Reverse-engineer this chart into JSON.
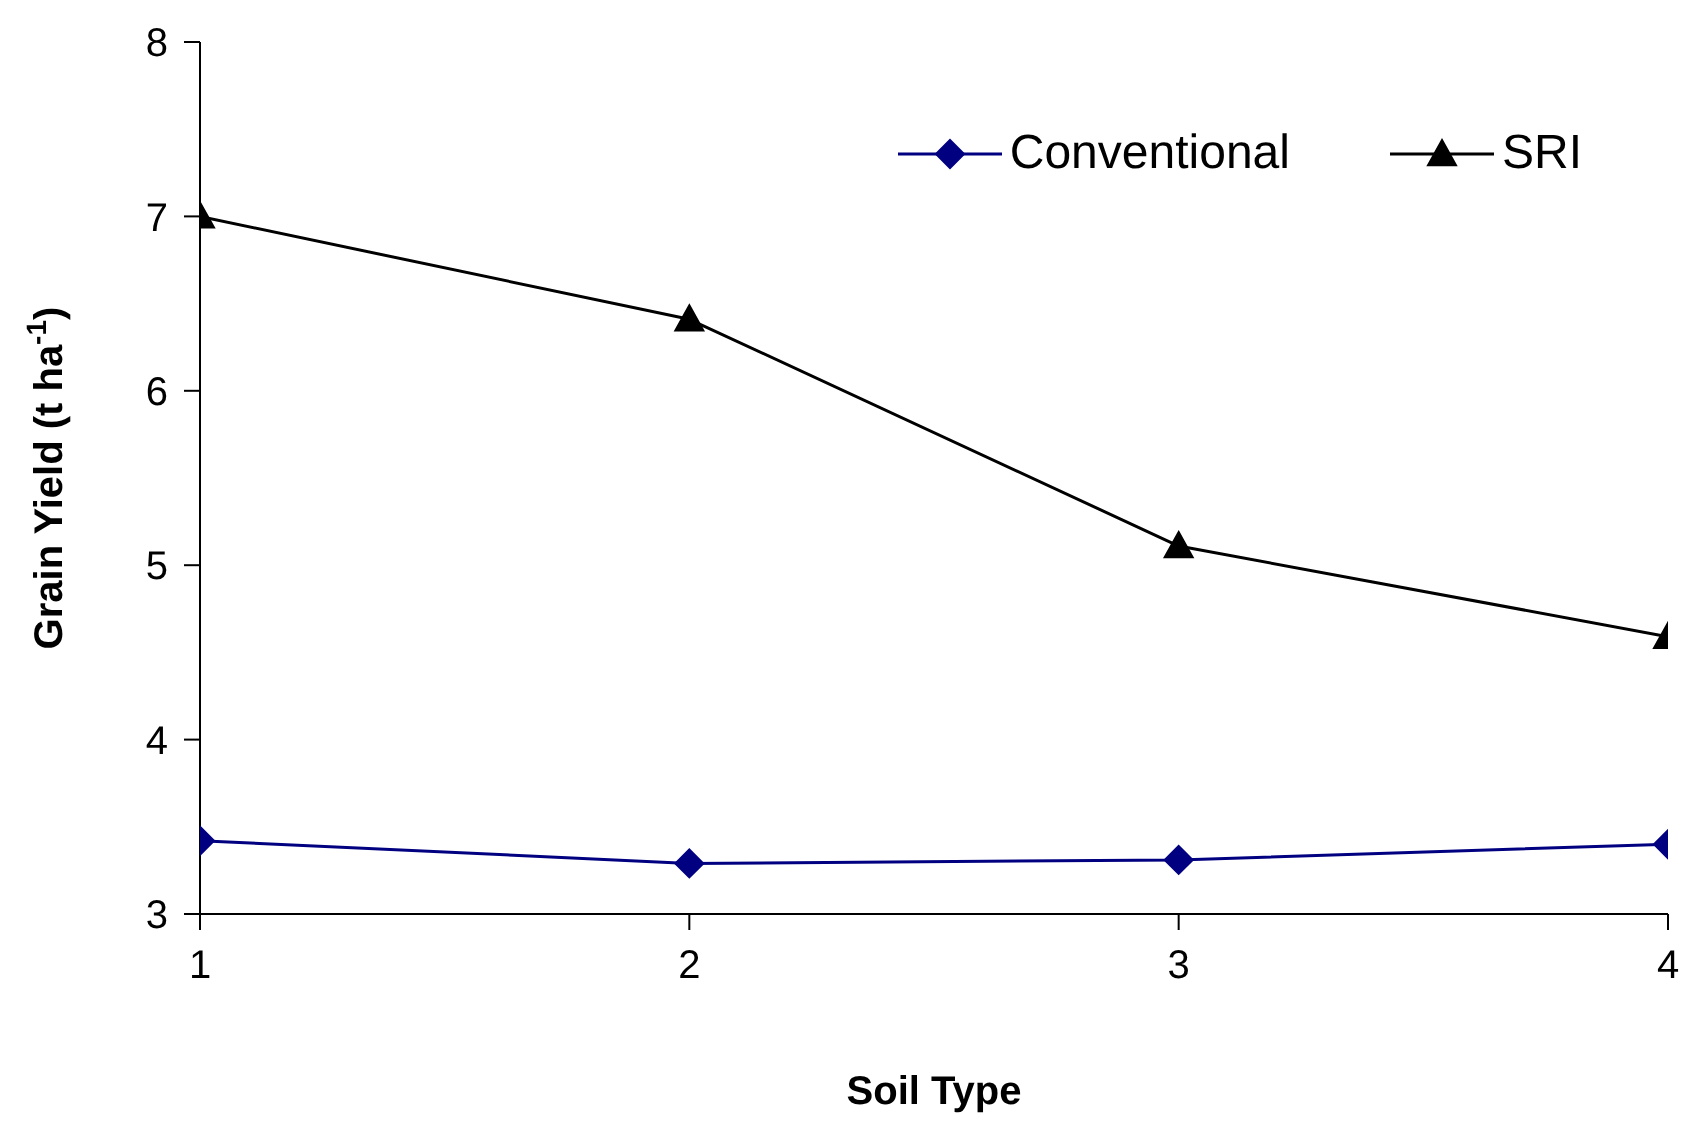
{
  "chart_data": {
    "type": "line",
    "xlabel": "Soil Type",
    "ylabel": "Grain Yield (t ha$^{-1}$)",
    "x": [
      1,
      2,
      3,
      4
    ],
    "series": [
      {
        "name": "Conventional",
        "color": "#000080",
        "marker": "diamond",
        "values": [
          3.42,
          3.29,
          3.31,
          3.4
        ]
      },
      {
        "name": "SRI",
        "color": "#000000",
        "marker": "triangle",
        "values": [
          7.0,
          6.41,
          5.11,
          4.59
        ]
      }
    ],
    "xlim": [
      1,
      4
    ],
    "xticks": [
      1,
      2,
      3,
      4
    ],
    "ylim": [
      3,
      8
    ],
    "yticks": [
      3,
      4,
      5,
      6,
      7,
      8
    ],
    "grid": false,
    "legend": "top right",
    "line_style": "solid"
  }
}
